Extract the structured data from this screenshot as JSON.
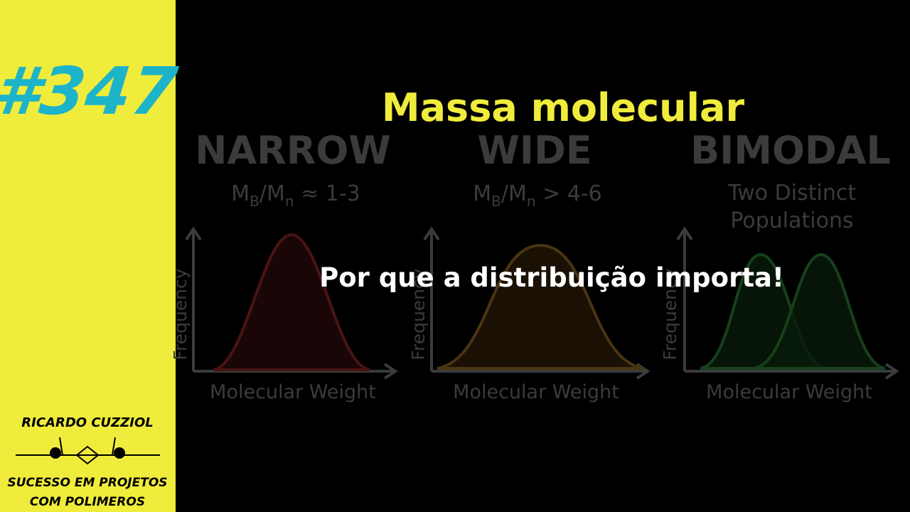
{
  "episode": "#347",
  "title": "Massa molecular",
  "subtitle": "Por que a distribuição importa!",
  "panels": [
    {
      "title": "NARROW",
      "ratio": {
        "m1": "M",
        "s1": "B",
        "m2": "/M",
        "s2": "n",
        "rest": " ≈ 1-3"
      },
      "y_axis": "Frequency",
      "x_axis": "Molecular Weight"
    },
    {
      "title": "WIDE",
      "ratio": {
        "m1": "M",
        "s1": "B",
        "m2": "/M",
        "s2": "n",
        "rest": " > 4-6"
      },
      "y_axis": "Frequency",
      "x_axis": "Molecular Weight"
    },
    {
      "title": "BIMODAL",
      "lines": [
        "Two Distinct",
        "Populations"
      ],
      "y_axis": "Frequency",
      "x_axis": "Molecular Weight"
    }
  ],
  "brand": {
    "name": "RICARDO CUZZIOL",
    "tagline": [
      "SUCESSO EM PROJETOS",
      "COM POLIMEROS"
    ]
  }
}
